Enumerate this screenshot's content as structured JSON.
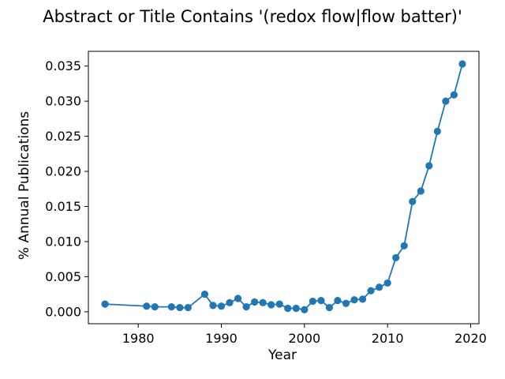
{
  "chart_data": {
    "type": "line",
    "title": "Abstract or Title Contains '(redox flow|flow batter)'",
    "xlabel": "Year",
    "ylabel": "% Annual Publications",
    "xlim": [
      1974,
      2021
    ],
    "ylim": [
      -0.0017,
      0.0371
    ],
    "xticks": [
      1980,
      1990,
      2000,
      2010,
      2020
    ],
    "yticks": [
      0.0,
      0.005,
      0.01,
      0.015,
      0.02,
      0.025,
      0.03,
      0.035
    ],
    "ytick_labels": [
      "0.000",
      "0.005",
      "0.010",
      "0.015",
      "0.020",
      "0.025",
      "0.030",
      "0.035"
    ],
    "grid": false,
    "marker": "circle",
    "color": "#1f77b4",
    "series": [
      {
        "x": [
          1976,
          1981,
          1982,
          1984,
          1985,
          1986,
          1988,
          1989,
          1990,
          1991,
          1992,
          1993,
          1994,
          1995,
          1996,
          1997,
          1998,
          1999,
          2000,
          2001,
          2002,
          2003,
          2004,
          2005,
          2006,
          2007,
          2008,
          2009,
          2010,
          2011,
          2012,
          2013,
          2014,
          2015,
          2016,
          2017,
          2018,
          2019
        ],
        "y": [
          0.0011,
          0.0008,
          0.0007,
          0.0007,
          0.0006,
          0.0006,
          0.0025,
          0.0009,
          0.0008,
          0.0013,
          0.0019,
          0.0007,
          0.0014,
          0.0013,
          0.001,
          0.0011,
          0.0005,
          0.0005,
          0.0003,
          0.0015,
          0.0016,
          0.0006,
          0.0016,
          0.0012,
          0.0017,
          0.0018,
          0.003,
          0.0035,
          0.0041,
          0.0077,
          0.0094,
          0.0157,
          0.0172,
          0.0208,
          0.0257,
          0.03,
          0.0309,
          0.0353
        ]
      }
    ]
  }
}
